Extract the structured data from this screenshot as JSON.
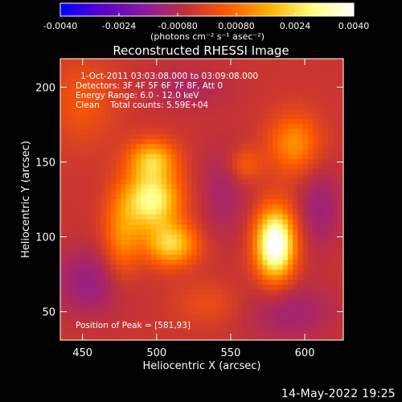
{
  "chart_data": {
    "type": "heatmap",
    "title": "Reconstructed RHESSI Image",
    "xlabel": "Heliocentric X (arcsec)",
    "ylabel": "Heliocentric Y (arcsec)",
    "xlim": [
      435,
      626
    ],
    "ylim": [
      31,
      219
    ],
    "x_ticks": [
      450,
      500,
      550,
      600
    ],
    "y_ticks": [
      50,
      100,
      150,
      200
    ],
    "colorbar": {
      "range": [
        -0.004,
        0.004
      ],
      "tick_values": [
        -0.004,
        -0.0024,
        -0.0008,
        0.0008,
        0.0024,
        0.004
      ],
      "tick_labels": [
        "-0.0040",
        "-0.0024",
        "-0.00080",
        "0.00080",
        "0.0024",
        "0.0040"
      ],
      "unit_label": "(photons cm⁻² s⁻¹ asec⁻²)",
      "colormap": [
        "#0000ff",
        "#5a00c8",
        "#8a1aa0",
        "#c0303a",
        "#ff5a00",
        "#ffb000",
        "#ffff80",
        "#ffffff"
      ]
    },
    "annotations": [
      "1-Oct-2011 03:03:08.000 to 03:09:08.000",
      "Detectors: 3F 4F 5F 6F 7F 8F, Att 0",
      "Energy Range: 6.0 - 12.0 keV",
      "Clean    Total counts: 5.59E+04"
    ],
    "peak_label": "Position of Peak = [581,93]",
    "peak": {
      "x": 581,
      "y": 93,
      "value": 0.004
    },
    "sources": [
      {
        "x": 580,
        "y": 95,
        "sx": 9,
        "sy": 16,
        "amp": 0.0048
      },
      {
        "x": 497,
        "y": 125,
        "sx": 13,
        "sy": 14,
        "amp": 0.0034
      },
      {
        "x": 510,
        "y": 95,
        "sx": 12,
        "sy": 10,
        "amp": 0.0026
      },
      {
        "x": 497,
        "y": 152,
        "sx": 11,
        "sy": 9,
        "amp": 0.0022
      },
      {
        "x": 477,
        "y": 100,
        "sx": 9,
        "sy": 20,
        "amp": 0.0016
      },
      {
        "x": 593,
        "y": 162,
        "sx": 12,
        "sy": 14,
        "amp": 0.0017
      },
      {
        "x": 560,
        "y": 148,
        "sx": 8,
        "sy": 8,
        "amp": 0.001
      },
      {
        "x": 455,
        "y": 70,
        "sx": 18,
        "sy": 16,
        "amp": -0.001
      },
      {
        "x": 450,
        "y": 190,
        "sx": 16,
        "sy": 20,
        "amp": 0.0008
      },
      {
        "x": 545,
        "y": 130,
        "sx": 12,
        "sy": 22,
        "amp": -0.0007
      },
      {
        "x": 590,
        "y": 50,
        "sx": 22,
        "sy": 14,
        "amp": -0.0008
      },
      {
        "x": 520,
        "y": 200,
        "sx": 20,
        "sy": 10,
        "amp": -0.0006
      },
      {
        "x": 610,
        "y": 120,
        "sx": 10,
        "sy": 20,
        "amp": -0.0009
      },
      {
        "x": 535,
        "y": 55,
        "sx": 16,
        "sy": 10,
        "amp": 0.0006
      }
    ],
    "background": -0.0004
  },
  "footer_date": "14-May-2022 19:25"
}
